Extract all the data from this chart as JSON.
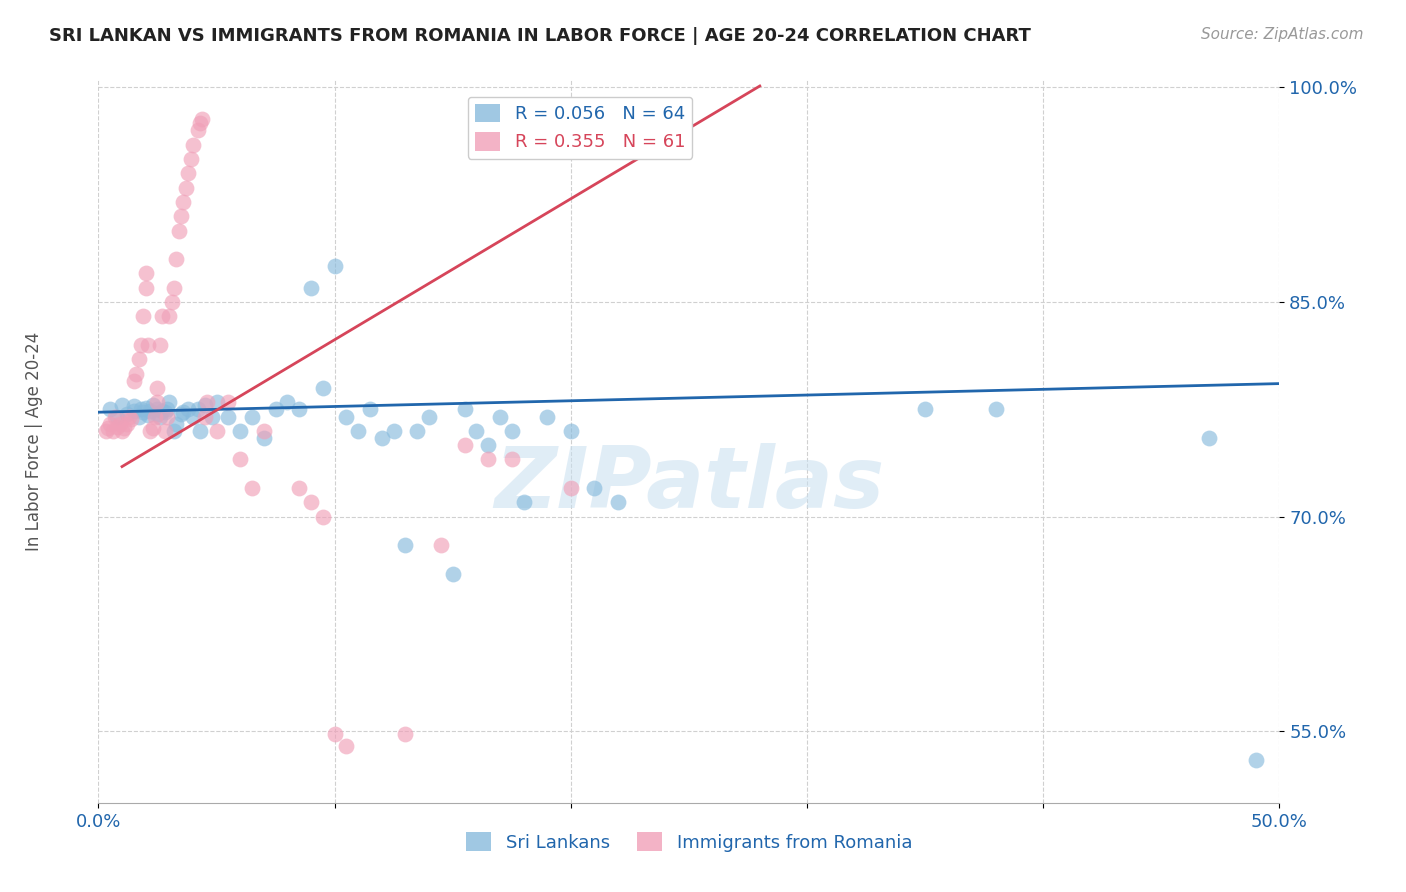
{
  "title": "SRI LANKAN VS IMMIGRANTS FROM ROMANIA IN LABOR FORCE | AGE 20-24 CORRELATION CHART",
  "source": "Source: ZipAtlas.com",
  "ylabel": "In Labor Force | Age 20-24",
  "xlim": [
    0.0,
    0.5
  ],
  "ylim": [
    0.5,
    1.005
  ],
  "ytick_positions": [
    0.55,
    0.7,
    0.85,
    1.0
  ],
  "yticklabels": [
    "55.0%",
    "70.0%",
    "85.0%",
    "100.0%"
  ],
  "background_color": "#ffffff",
  "grid_color": "#d0d0d0",
  "blue_color": "#88bbdd",
  "pink_color": "#f0a0b8",
  "blue_line_color": "#2166ac",
  "pink_line_color": "#d6455a",
  "legend_blue_label": "R = 0.056   N = 64",
  "legend_pink_label": "R = 0.355   N = 61",
  "sri_lankan_label": "Sri Lankans",
  "romania_label": "Immigrants from Romania",
  "watermark": "ZIPatlas",
  "blue_line": [
    0.0,
    0.773,
    0.5,
    0.793
  ],
  "pink_line": [
    0.01,
    0.735,
    0.28,
    1.001
  ],
  "blue_x": [
    0.005,
    0.008,
    0.01,
    0.012,
    0.015,
    0.015,
    0.017,
    0.018,
    0.019,
    0.02,
    0.021,
    0.022,
    0.023,
    0.025,
    0.025,
    0.026,
    0.027,
    0.028,
    0.029,
    0.03,
    0.032,
    0.033,
    0.035,
    0.036,
    0.038,
    0.04,
    0.042,
    0.043,
    0.045,
    0.048,
    0.05,
    0.055,
    0.06,
    0.065,
    0.07,
    0.075,
    0.08,
    0.085,
    0.09,
    0.095,
    0.1,
    0.105,
    0.11,
    0.115,
    0.12,
    0.125,
    0.13,
    0.135,
    0.14,
    0.15,
    0.155,
    0.16,
    0.165,
    0.17,
    0.175,
    0.18,
    0.19,
    0.2,
    0.21,
    0.22,
    0.35,
    0.38,
    0.47,
    0.49
  ],
  "blue_y": [
    0.775,
    0.77,
    0.778,
    0.772,
    0.777,
    0.774,
    0.77,
    0.775,
    0.773,
    0.776,
    0.771,
    0.774,
    0.778,
    0.772,
    0.775,
    0.77,
    0.774,
    0.773,
    0.775,
    0.78,
    0.76,
    0.765,
    0.772,
    0.773,
    0.775,
    0.77,
    0.775,
    0.76,
    0.778,
    0.77,
    0.78,
    0.77,
    0.76,
    0.77,
    0.755,
    0.775,
    0.78,
    0.775,
    0.86,
    0.79,
    0.875,
    0.77,
    0.76,
    0.775,
    0.755,
    0.76,
    0.68,
    0.76,
    0.77,
    0.66,
    0.775,
    0.76,
    0.75,
    0.77,
    0.76,
    0.71,
    0.77,
    0.76,
    0.72,
    0.71,
    0.775,
    0.775,
    0.755,
    0.53
  ],
  "pink_x": [
    0.003,
    0.004,
    0.005,
    0.006,
    0.007,
    0.008,
    0.009,
    0.01,
    0.011,
    0.012,
    0.013,
    0.014,
    0.015,
    0.016,
    0.017,
    0.018,
    0.019,
    0.02,
    0.02,
    0.021,
    0.022,
    0.023,
    0.024,
    0.025,
    0.025,
    0.026,
    0.027,
    0.028,
    0.029,
    0.03,
    0.031,
    0.032,
    0.033,
    0.034,
    0.035,
    0.036,
    0.037,
    0.038,
    0.039,
    0.04,
    0.042,
    0.043,
    0.044,
    0.045,
    0.046,
    0.05,
    0.055,
    0.06,
    0.065,
    0.07,
    0.085,
    0.09,
    0.095,
    0.1,
    0.105,
    0.13,
    0.145,
    0.155,
    0.165,
    0.175,
    0.2
  ],
  "pink_y": [
    0.76,
    0.762,
    0.765,
    0.76,
    0.77,
    0.763,
    0.765,
    0.76,
    0.762,
    0.765,
    0.77,
    0.768,
    0.795,
    0.8,
    0.81,
    0.82,
    0.84,
    0.86,
    0.87,
    0.82,
    0.76,
    0.762,
    0.77,
    0.78,
    0.79,
    0.82,
    0.84,
    0.76,
    0.77,
    0.84,
    0.85,
    0.86,
    0.88,
    0.9,
    0.91,
    0.92,
    0.93,
    0.94,
    0.95,
    0.96,
    0.97,
    0.975,
    0.978,
    0.77,
    0.78,
    0.76,
    0.78,
    0.74,
    0.72,
    0.76,
    0.72,
    0.71,
    0.7,
    0.548,
    0.54,
    0.548,
    0.68,
    0.75,
    0.74,
    0.74,
    0.72
  ]
}
